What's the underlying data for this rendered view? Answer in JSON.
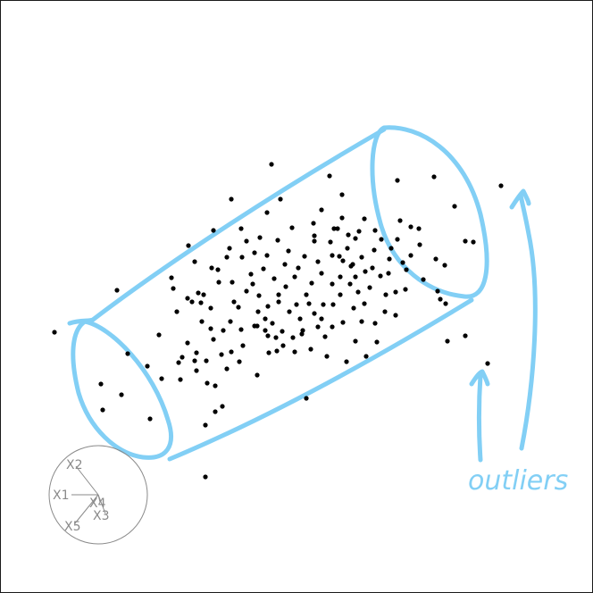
{
  "chart_data": {
    "type": "scatter",
    "title": "",
    "projection_axes": [
      "X1",
      "X2",
      "X3",
      "X4",
      "X5"
    ],
    "annotation": "outliers",
    "annotation_color": "#82cff5",
    "point_color": "#000000",
    "outline_color": "#1a1a1a",
    "points": [
      [
        304,
        184
      ],
      [
        369,
        197
      ],
      [
        445,
        202
      ],
      [
        486,
        198
      ],
      [
        561,
        208
      ],
      [
        259,
        223
      ],
      [
        314,
        223
      ],
      [
        383,
        218
      ],
      [
        509,
        231
      ],
      [
        360,
        235
      ],
      [
        239,
        258
      ],
      [
        211,
        275
      ],
      [
        299,
        238
      ],
      [
        351,
        250
      ],
      [
        448,
        247
      ],
      [
        408,
        245
      ],
      [
        460,
        254
      ],
      [
        469,
        256
      ],
      [
        420,
        258
      ],
      [
        390,
        263
      ],
      [
        398,
        267
      ],
      [
        370,
        271
      ],
      [
        352,
        270
      ],
      [
        270,
        256
      ],
      [
        276,
        270
      ],
      [
        257,
        278
      ],
      [
        285,
        283
      ],
      [
        311,
        269
      ],
      [
        323,
        281
      ],
      [
        237,
        300
      ],
      [
        244,
        302
      ],
      [
        218,
        293
      ],
      [
        192,
        311
      ],
      [
        194,
        323
      ],
      [
        210,
        334
      ],
      [
        228,
        330
      ],
      [
        225,
        339
      ],
      [
        271,
        288
      ],
      [
        254,
        288
      ],
      [
        307,
        312
      ],
      [
        319,
        296
      ],
      [
        341,
        287
      ],
      [
        372,
        286
      ],
      [
        384,
        292
      ],
      [
        405,
        288
      ],
      [
        409,
        304
      ],
      [
        417,
        300
      ],
      [
        451,
        294
      ],
      [
        436,
        290
      ],
      [
        460,
        286
      ],
      [
        488,
        290
      ],
      [
        521,
        270
      ],
      [
        530,
        271
      ],
      [
        498,
        297
      ],
      [
        474,
        313
      ],
      [
        490,
        326
      ],
      [
        454,
        324
      ],
      [
        443,
        327
      ],
      [
        426,
        309
      ],
      [
        432,
        330
      ],
      [
        414,
        322
      ],
      [
        398,
        310
      ],
      [
        401,
        327
      ],
      [
        381,
        330
      ],
      [
        372,
        318
      ],
      [
        360,
        306
      ],
      [
        349,
        317
      ],
      [
        343,
        330
      ],
      [
        332,
        341
      ],
      [
        320,
        321
      ],
      [
        312,
        338
      ],
      [
        300,
        343
      ],
      [
        289,
        349
      ],
      [
        276,
        326
      ],
      [
        262,
        338
      ],
      [
        258,
        360
      ],
      [
        270,
        369
      ],
      [
        288,
        365
      ],
      [
        297,
        370
      ],
      [
        305,
        362
      ],
      [
        316,
        371
      ],
      [
        328,
        378
      ],
      [
        338,
        374
      ],
      [
        356,
        366
      ],
      [
        364,
        377
      ],
      [
        372,
        366
      ],
      [
        384,
        361
      ],
      [
        396,
        345
      ],
      [
        408,
        340
      ],
      [
        420,
        362
      ],
      [
        431,
        349
      ],
      [
        443,
        353
      ],
      [
        422,
        383
      ],
      [
        398,
        382
      ],
      [
        388,
        405
      ],
      [
        410,
        399
      ],
      [
        366,
        399
      ],
      [
        348,
        391
      ],
      [
        330,
        394
      ],
      [
        310,
        393
      ],
      [
        300,
        376
      ],
      [
        272,
        387
      ],
      [
        268,
        405
      ],
      [
        248,
        397
      ],
      [
        231,
        404
      ],
      [
        220,
        415
      ],
      [
        200,
        406
      ],
      [
        178,
        375
      ],
      [
        143,
        396
      ],
      [
        165,
        410
      ],
      [
        181,
        424
      ],
      [
        202,
        425
      ],
      [
        232,
        429
      ],
      [
        241,
        432
      ],
      [
        254,
        413
      ],
      [
        288,
        420
      ],
      [
        343,
        446
      ],
      [
        249,
        455
      ],
      [
        241,
        461
      ],
      [
        230,
        476
      ],
      [
        230,
        534
      ],
      [
        113,
        430
      ],
      [
        136,
        442
      ],
      [
        115,
        459
      ],
      [
        168,
        469
      ],
      [
        61,
        372
      ],
      [
        131,
        325
      ],
      [
        493,
        335
      ],
      [
        499,
        340
      ],
      [
        501,
        382
      ],
      [
        521,
        376
      ],
      [
        546,
        407
      ],
      [
        226,
        360
      ],
      [
        210,
        384
      ],
      [
        220,
        395
      ],
      [
        236,
        345
      ],
      [
        198,
        349
      ],
      [
        245,
        316
      ],
      [
        260,
        316
      ],
      [
        281,
        307
      ],
      [
        295,
        301
      ],
      [
        334,
        300
      ],
      [
        356,
        293
      ],
      [
        381,
        310
      ],
      [
        393,
        298
      ],
      [
        419,
        280
      ],
      [
        427,
        268
      ],
      [
        438,
        278
      ],
      [
        445,
        268
      ],
      [
        362,
        341
      ],
      [
        352,
        351
      ],
      [
        336,
        357
      ],
      [
        324,
        349
      ],
      [
        290,
        331
      ],
      [
        283,
        318
      ],
      [
        204,
        400
      ],
      [
        218,
        404
      ],
      [
        239,
        380
      ],
      [
        259,
        394
      ],
      [
        317,
        387
      ],
      [
        301,
        395
      ],
      [
        352,
        264
      ],
      [
        378,
        256
      ],
      [
        389,
        278
      ],
      [
        402,
        259
      ],
      [
        215,
        338
      ],
      [
        222,
        328
      ],
      [
        327,
        255
      ],
      [
        291,
        266
      ],
      [
        299,
        286
      ],
      [
        250,
        370
      ],
      [
        236,
        368
      ],
      [
        383,
        244
      ],
      [
        395,
        296
      ],
      [
        330,
        310
      ],
      [
        346,
        340
      ],
      [
        267,
        344
      ],
      [
        309,
        378
      ],
      [
        360,
        357
      ],
      [
        373,
        341
      ],
      [
        392,
        318
      ],
      [
        405,
        360
      ],
      [
        435,
        306
      ],
      [
        455,
        302
      ],
      [
        470,
        274
      ],
      [
        339,
        370
      ],
      [
        285,
        365
      ],
      [
        297,
        357
      ],
      [
        312,
        330
      ],
      [
        374,
        256
      ],
      [
        380,
        287
      ]
    ],
    "legend": "none",
    "grid": false
  }
}
